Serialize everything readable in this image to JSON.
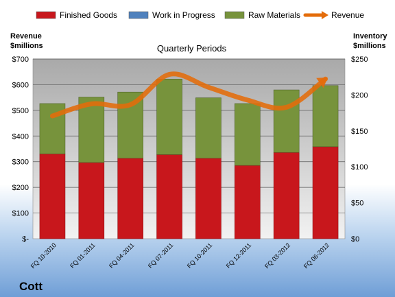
{
  "company": "Cott",
  "chart_data": {
    "type": "bar",
    "title": "Quarterly Periods",
    "left_axis_label": [
      "Revenue",
      "$millions"
    ],
    "right_axis_label": [
      "Inventory",
      "$millions"
    ],
    "left_ticks": [
      "$-",
      "$100",
      "$200",
      "$300",
      "$400",
      "$500",
      "$600",
      "$700"
    ],
    "right_ticks": [
      "$0",
      "$50",
      "$100",
      "$150",
      "$200",
      "$250"
    ],
    "left_ylim": [
      0,
      700
    ],
    "right_ylim": [
      0,
      250
    ],
    "categories": [
      "FQ 10-2010",
      "FQ 01-2011",
      "FQ 04-2011",
      "FQ 07-2011",
      "FQ 10-2011",
      "FQ 12-2011",
      "FQ 03-2012",
      "FQ 06-2012"
    ],
    "series": [
      {
        "name": "Finished Goods",
        "axis": "right",
        "kind": "stacked-bar",
        "color": "#c8171c",
        "values": [
          118,
          106,
          112,
          117,
          112,
          102,
          120,
          128
        ]
      },
      {
        "name": "Work in Progress",
        "axis": "right",
        "kind": "stacked-bar",
        "color": "#4f81bd",
        "values": [
          0,
          0,
          0,
          0,
          0,
          0,
          0,
          0
        ]
      },
      {
        "name": "Raw Materials",
        "axis": "right",
        "kind": "stacked-bar",
        "color": "#77933c",
        "values": [
          70,
          91,
          92,
          105,
          84,
          86,
          87,
          85
        ]
      },
      {
        "name": "Revenue",
        "axis": "left",
        "kind": "line",
        "color": "#e46c0a",
        "values": [
          478,
          525,
          522,
          640,
          590,
          540,
          512,
          622
        ]
      }
    ],
    "grid": true,
    "legend_position": "top"
  }
}
